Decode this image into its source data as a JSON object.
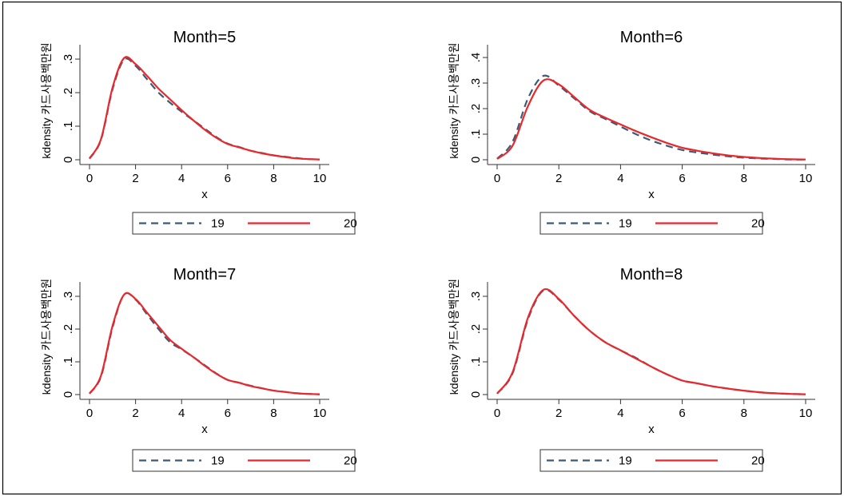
{
  "colors": {
    "series_19": "#3d5a75",
    "series_20": "#e8282d",
    "frame": "#000000",
    "axis": "#333333"
  },
  "chart_data": [
    {
      "type": "line",
      "title": "Month=5",
      "xlabel": "x",
      "ylabel": "kdensity 카드사용백만원",
      "xlim": [
        0,
        10
      ],
      "ylim": [
        0,
        0.3
      ],
      "xticks": [
        0,
        2,
        4,
        6,
        8,
        10
      ],
      "yticks": [
        0,
        0.1,
        0.2,
        0.3
      ],
      "xtick_labels": [
        "0",
        "2",
        "4",
        "6",
        "8",
        "10"
      ],
      "ytick_labels": [
        "0",
        ".1",
        ".2",
        ".3"
      ],
      "grid": false,
      "legend_position": "bottom",
      "x": [
        0,
        0.5,
        1,
        1.5,
        2,
        2.5,
        3,
        3.5,
        4,
        4.5,
        5,
        5.5,
        6,
        6.5,
        7,
        7.5,
        8,
        8.5,
        9,
        9.5,
        10
      ],
      "series": [
        {
          "name": "19",
          "values": [
            0.003,
            0.06,
            0.21,
            0.298,
            0.28,
            0.24,
            0.2,
            0.17,
            0.143,
            0.118,
            0.093,
            0.068,
            0.048,
            0.038,
            0.027,
            0.02,
            0.013,
            0.009,
            0.005,
            0.002,
            0.001
          ]
        },
        {
          "name": "20",
          "values": [
            0.004,
            0.062,
            0.215,
            0.303,
            0.285,
            0.25,
            0.212,
            0.18,
            0.148,
            0.118,
            0.09,
            0.066,
            0.047,
            0.037,
            0.027,
            0.019,
            0.013,
            0.008,
            0.004,
            0.002,
            0.001
          ]
        }
      ]
    },
    {
      "type": "line",
      "title": "Month=6",
      "xlabel": "x",
      "ylabel": "kdensity 카드사용백만원",
      "xlim": [
        0,
        10
      ],
      "ylim": [
        0,
        0.4
      ],
      "xticks": [
        0,
        2,
        4,
        6,
        8,
        10
      ],
      "yticks": [
        0,
        0.1,
        0.2,
        0.3,
        0.4
      ],
      "xtick_labels": [
        "0",
        "2",
        "4",
        "6",
        "8",
        "10"
      ],
      "ytick_labels": [
        "0",
        ".1",
        ".2",
        ".3",
        ".4"
      ],
      "grid": false,
      "legend_position": "bottom",
      "x": [
        0,
        0.5,
        1,
        1.5,
        2,
        2.5,
        3,
        3.5,
        4,
        4.5,
        5,
        5.5,
        6,
        6.5,
        7,
        7.5,
        8,
        8.5,
        9,
        9.5,
        10
      ],
      "series": [
        {
          "name": "19",
          "values": [
            0.004,
            0.07,
            0.24,
            0.328,
            0.29,
            0.24,
            0.19,
            0.16,
            0.13,
            0.1,
            0.075,
            0.055,
            0.038,
            0.028,
            0.02,
            0.013,
            0.008,
            0.005,
            0.003,
            0.001,
            0.001
          ]
        },
        {
          "name": "20",
          "values": [
            0.003,
            0.055,
            0.21,
            0.31,
            0.295,
            0.245,
            0.195,
            0.165,
            0.138,
            0.112,
            0.088,
            0.066,
            0.047,
            0.035,
            0.025,
            0.017,
            0.011,
            0.007,
            0.004,
            0.002,
            0.001
          ]
        }
      ]
    },
    {
      "type": "line",
      "title": "Month=7",
      "xlabel": "x",
      "ylabel": "kdensity 카드사용백만원",
      "xlim": [
        0,
        10
      ],
      "ylim": [
        0,
        0.3
      ],
      "xticks": [
        0,
        2,
        4,
        6,
        8,
        10
      ],
      "yticks": [
        0,
        0.1,
        0.2,
        0.3
      ],
      "xtick_labels": [
        "0",
        "2",
        "4",
        "6",
        "8",
        "10"
      ],
      "ytick_labels": [
        "0",
        ".1",
        ".2",
        ".3"
      ],
      "grid": false,
      "legend_position": "bottom",
      "x": [
        0,
        0.5,
        1,
        1.5,
        2,
        2.5,
        3,
        3.5,
        4,
        4.5,
        5,
        5.5,
        6,
        6.5,
        7,
        7.5,
        8,
        8.5,
        9,
        9.5,
        10
      ],
      "series": [
        {
          "name": "19",
          "values": [
            0.003,
            0.055,
            0.205,
            0.305,
            0.29,
            0.245,
            0.2,
            0.16,
            0.138,
            0.115,
            0.09,
            0.065,
            0.045,
            0.036,
            0.027,
            0.019,
            0.012,
            0.008,
            0.004,
            0.002,
            0.001
          ]
        },
        {
          "name": "20",
          "values": [
            0.003,
            0.058,
            0.21,
            0.305,
            0.292,
            0.25,
            0.208,
            0.167,
            0.14,
            0.115,
            0.088,
            0.064,
            0.045,
            0.036,
            0.026,
            0.019,
            0.012,
            0.008,
            0.004,
            0.002,
            0.001
          ]
        }
      ]
    },
    {
      "type": "line",
      "title": "Month=8",
      "xlabel": "x",
      "ylabel": "kdensity 카드사용백만원",
      "xlim": [
        0,
        10
      ],
      "ylim": [
        0,
        0.3
      ],
      "xticks": [
        0,
        2,
        4,
        6,
        8,
        10
      ],
      "yticks": [
        0,
        0.1,
        0.2,
        0.3
      ],
      "xtick_labels": [
        "0",
        "2",
        "4",
        "6",
        "8",
        "10"
      ],
      "ytick_labels": [
        "0",
        ".1",
        ".2",
        ".3"
      ],
      "grid": false,
      "legend_position": "bottom",
      "x": [
        0,
        0.5,
        1,
        1.5,
        2,
        2.5,
        3,
        3.5,
        4,
        4.5,
        5,
        5.5,
        6,
        6.5,
        7,
        7.5,
        8,
        8.5,
        9,
        9.5,
        10
      ],
      "series": [
        {
          "name": "19",
          "values": [
            0.003,
            0.065,
            0.23,
            0.318,
            0.29,
            0.24,
            0.195,
            0.16,
            0.135,
            0.112,
            0.085,
            0.062,
            0.043,
            0.034,
            0.025,
            0.018,
            0.012,
            0.007,
            0.004,
            0.002,
            0.001
          ]
        },
        {
          "name": "20",
          "values": [
            0.003,
            0.068,
            0.235,
            0.32,
            0.292,
            0.24,
            0.195,
            0.16,
            0.135,
            0.11,
            0.085,
            0.062,
            0.043,
            0.034,
            0.025,
            0.018,
            0.012,
            0.007,
            0.004,
            0.002,
            0.001
          ]
        }
      ]
    }
  ]
}
